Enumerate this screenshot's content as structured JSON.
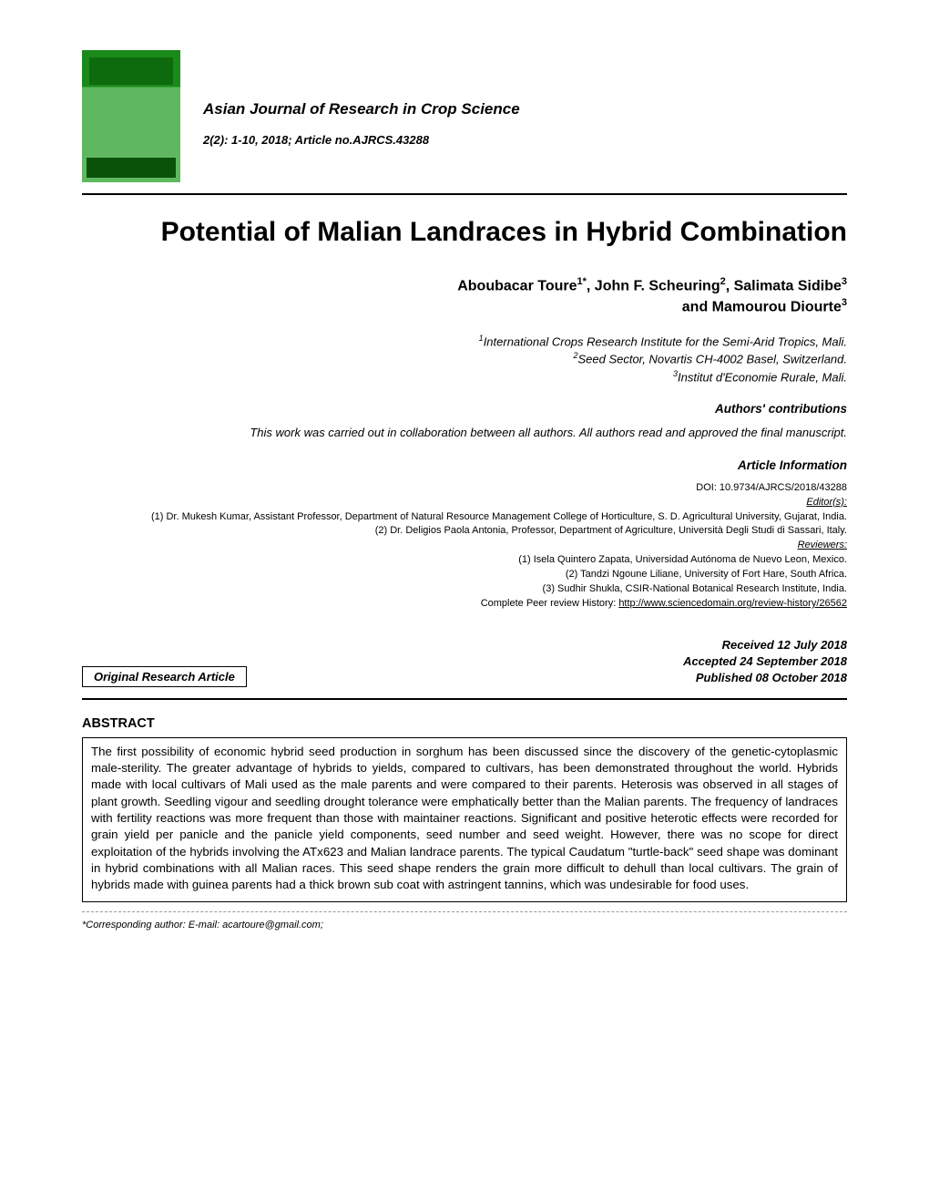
{
  "journal": {
    "name": "Asian Journal of Research in Crop Science",
    "issue_line": "2(2): 1-10, 2018; Article no.AJRCS.43288"
  },
  "cover": {
    "bg_top": "#1a8a1a",
    "bg_mid": "#5fb85f"
  },
  "title": "Potential of Malian Landraces in Hybrid Combination",
  "authors_line1": "Aboubacar Toure",
  "authors_sup1": "1*",
  "authors_mid1": ", John F. Scheuring",
  "authors_sup2": "2",
  "authors_mid2": ", Salimata Sidibe",
  "authors_sup3": "3",
  "authors_line2": "and Mamourou Diourte",
  "authors_sup4": "3",
  "affiliations": {
    "a1_sup": "1",
    "a1": "International Crops Research Institute for the Semi-Arid Tropics, Mali.",
    "a2_sup": "2",
    "a2": "Seed Sector, Novartis CH-4002 Basel, Switzerland.",
    "a3_sup": "3",
    "a3": "Institut d'Economie Rurale, Mali."
  },
  "contributions_label": "Authors' contributions",
  "contributions_text": "This work was carried out in collaboration between all authors. All authors read and approved the final manuscript.",
  "article_info_label": "Article Information",
  "info": {
    "doi": "DOI: 10.9734/AJRCS/2018/43288",
    "editors_label": "Editor(s):",
    "editor1": "(1) Dr. Mukesh Kumar, Assistant Professor, Department of Natural Resource Management College of Horticulture, S. D. Agricultural University, Gujarat, India.",
    "editor2": "(2) Dr. Deligios Paola Antonia, Professor, Department of Agriculture, Università Degli Studi di Sassari, Italy.",
    "reviewers_label": "Reviewers:",
    "rev1": "(1) Isela Quintero Zapata, Universidad Autónoma de Nuevo Leon, Mexico.",
    "rev2": "(2) Tandzi Ngoune Liliane, University of Fort Hare, South Africa.",
    "rev3": "(3) Sudhir Shukla, CSIR-National Botanical Research Institute, India.",
    "history_prefix": "Complete Peer review History: ",
    "history_url": "http://www.sciencedomain.org/review-history/26562"
  },
  "article_type": "Original Research Article",
  "dates": {
    "received": "Received 12 July 2018",
    "accepted": "Accepted 24 September 2018",
    "published": "Published 08 October 2018"
  },
  "abstract_heading": "ABSTRACT",
  "abstract_text": "The first possibility of economic hybrid seed production in sorghum has been discussed since the discovery of the genetic-cytoplasmic male-sterility. The greater advantage of hybrids to yields, compared to cultivars, has been demonstrated throughout the world. Hybrids made with local cultivars of Mali used as the male parents and were compared to their parents. Heterosis was observed in all stages of plant growth. Seedling vigour and seedling drought tolerance were emphatically better than the Malian parents. The frequency of landraces with fertility reactions was more frequent than those with maintainer reactions. Significant and positive heterotic effects were recorded for grain yield per panicle and the panicle yield components, seed number and seed weight. However, there was no scope for direct exploitation of the hybrids involving the ATx623 and Malian landrace parents. The typical Caudatum \"turtle-back\" seed shape was dominant in hybrid combinations with all Malian races. This seed shape renders the grain more difficult to dehull than local cultivars. The grain of hybrids made with guinea parents had a thick brown sub coat with astringent tannins, which was undesirable for food uses.",
  "footnote": "*Corresponding author: E-mail: acartoure@gmail.com;"
}
